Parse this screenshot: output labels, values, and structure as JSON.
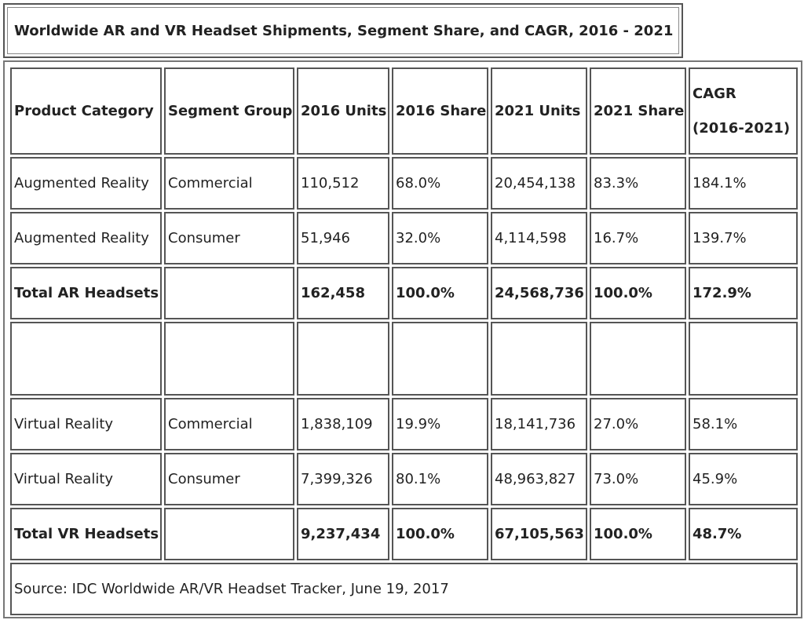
{
  "title": "Worldwide AR and VR Headset Shipments, Segment Share, and CAGR, 2016 - 2021",
  "chart_data": {
    "type": "table",
    "title": "Worldwide AR and VR Headset Shipments, Segment Share, and CAGR, 2016 - 2021",
    "columns": [
      "Product Category",
      "Segment Group",
      "2016 Units",
      "2016 Share",
      "2021 Units",
      "2021 Share",
      "CAGR (2016-2021)"
    ],
    "cagr_header": {
      "line1": "CAGR",
      "line2": "(2016-2021)"
    },
    "rows": [
      {
        "category": "Augmented Reality",
        "segment": "Commercial",
        "units_2016": "110,512",
        "share_2016": "68.0%",
        "units_2021": "20,454,138",
        "share_2021": "83.3%",
        "cagr": "184.1%",
        "total": false
      },
      {
        "category": "Augmented Reality",
        "segment": "Consumer",
        "units_2016": "51,946",
        "share_2016": "32.0%",
        "units_2021": "4,114,598",
        "share_2021": "16.7%",
        "cagr": "139.7%",
        "total": false
      },
      {
        "category": "Total AR Headsets",
        "segment": "",
        "units_2016": "162,458",
        "share_2016": "100.0%",
        "units_2021": "24,568,736",
        "share_2021": "100.0%",
        "cagr": "172.9%",
        "total": true
      },
      {
        "category": "",
        "segment": "",
        "units_2016": "",
        "share_2016": "",
        "units_2021": "",
        "share_2021": "",
        "cagr": "",
        "total": false
      },
      {
        "category": "Virtual Reality",
        "segment": "Commercial",
        "units_2016": "1,838,109",
        "share_2016": "19.9%",
        "units_2021": "18,141,736",
        "share_2021": "27.0%",
        "cagr": "58.1%",
        "total": false
      },
      {
        "category": "Virtual Reality",
        "segment": "Consumer",
        "units_2016": "7,399,326",
        "share_2016": "80.1%",
        "units_2021": "48,963,827",
        "share_2021": "73.0%",
        "cagr": "45.9%",
        "total": false
      },
      {
        "category": "Total VR Headsets",
        "segment": "",
        "units_2016": "9,237,434",
        "share_2016": "100.0%",
        "units_2021": "67,105,563",
        "share_2021": "100.0%",
        "cagr": "48.7%",
        "total": true
      }
    ],
    "source": "Source: IDC Worldwide AR/VR Headset Tracker, June 19, 2017"
  }
}
